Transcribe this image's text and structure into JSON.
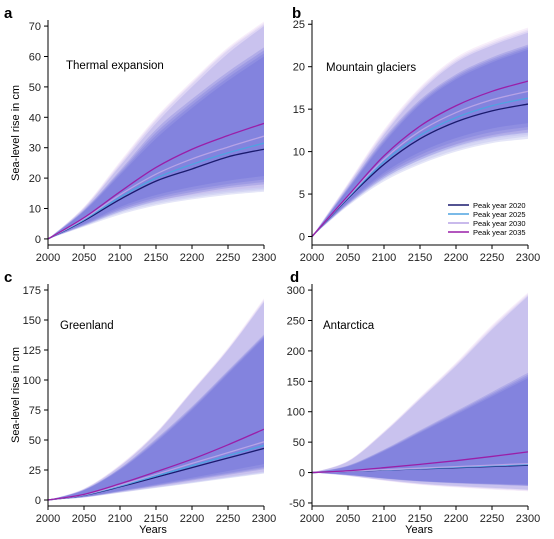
{
  "figure": {
    "ylabel": "Sea-level rise in cm",
    "xlabel": "Years",
    "legend": [
      {
        "label": "Peak year 2020",
        "color": "#1a1a6e"
      },
      {
        "label": "Peak year 2025",
        "color": "#4fa3e0"
      },
      {
        "label": "Peak year 2030",
        "color": "#b7a3e6"
      },
      {
        "label": "Peak year 2035",
        "color": "#9a1fa8"
      }
    ]
  },
  "chart_data": [
    {
      "type": "area",
      "letter": "a",
      "title": "Thermal expansion",
      "x": [
        2000,
        2050,
        2100,
        2150,
        2200,
        2250,
        2300
      ],
      "xlim": [
        2000,
        2300
      ],
      "ylim": [
        -2,
        72
      ],
      "yticks": [
        0,
        10,
        20,
        30,
        40,
        50,
        60,
        70
      ],
      "xticks": [
        2000,
        2050,
        2100,
        2150,
        2200,
        2250,
        2300
      ],
      "series": [
        {
          "name": "Peak year 2020",
          "color": "#1a1a6e",
          "values": [
            0,
            6,
            13,
            19,
            23,
            27,
            29.5
          ],
          "low": [
            0,
            4,
            8,
            11,
            13,
            14.5,
            15.5
          ],
          "high": [
            0,
            9,
            21,
            33,
            43,
            52,
            60
          ],
          "outer": [
            0,
            10,
            24,
            38,
            50,
            61,
            70
          ]
        },
        {
          "name": "Peak year 2025",
          "color": "#4fa3e0",
          "values": [
            0,
            6.3,
            13.7,
            20,
            24.5,
            28.3,
            31.5
          ],
          "low": [
            0,
            4.2,
            8.5,
            11.5,
            13.5,
            15,
            16
          ],
          "high": [
            0,
            9.2,
            21.5,
            34,
            44,
            53,
            61
          ],
          "outer": [
            0,
            10.2,
            24.5,
            39,
            51,
            62,
            70.5
          ]
        },
        {
          "name": "Peak year 2030",
          "color": "#b7a3e6",
          "values": [
            0,
            6.6,
            14.5,
            21.3,
            26.3,
            30.2,
            33.8
          ],
          "low": [
            0,
            4.4,
            9,
            12,
            14,
            15.5,
            16.5
          ],
          "high": [
            0,
            9.4,
            22,
            35,
            45,
            54,
            62
          ],
          "outer": [
            0,
            10.4,
            25,
            39.5,
            51.5,
            62.5,
            71
          ]
        },
        {
          "name": "Peak year 2035",
          "color": "#9a1fa8",
          "values": [
            0,
            7,
            15.5,
            23.5,
            29.5,
            34,
            38
          ],
          "low": [
            0,
            4.6,
            9.5,
            12.5,
            14.5,
            16,
            17
          ],
          "high": [
            0,
            9.6,
            22.5,
            36,
            46,
            55,
            63
          ],
          "outer": [
            0,
            10.6,
            25.5,
            40,
            52,
            63,
            71.5
          ]
        }
      ]
    },
    {
      "type": "area",
      "letter": "b",
      "title": "Mountain glaciers",
      "x": [
        2000,
        2050,
        2100,
        2150,
        2200,
        2250,
        2300
      ],
      "xlim": [
        2000,
        2300
      ],
      "ylim": [
        -1,
        25.5
      ],
      "yticks": [
        0,
        5,
        10,
        15,
        20,
        25
      ],
      "xticks": [
        2000,
        2050,
        2100,
        2150,
        2200,
        2250,
        2300
      ],
      "series": [
        {
          "name": "Peak year 2020",
          "color": "#1a1a6e",
          "values": [
            0,
            4.5,
            8.5,
            11.5,
            13.5,
            14.8,
            15.6
          ],
          "low": [
            0,
            3.6,
            6.5,
            8.5,
            10,
            11,
            11.5
          ],
          "high": [
            0,
            5.5,
            11,
            15.5,
            18.5,
            20.5,
            22
          ],
          "outer": [
            0,
            6,
            12,
            17,
            20.5,
            22.5,
            24
          ]
        },
        {
          "name": "Peak year 2025",
          "color": "#4fa3e0",
          "values": [
            0,
            4.6,
            8.8,
            11.9,
            14,
            15.4,
            16.3
          ],
          "low": [
            0,
            3.7,
            6.7,
            8.7,
            10.2,
            11.2,
            11.8
          ],
          "high": [
            0,
            5.6,
            11.2,
            15.7,
            18.7,
            20.7,
            22.2
          ],
          "outer": [
            0,
            6.1,
            12.2,
            17.2,
            20.7,
            22.7,
            24.2
          ]
        },
        {
          "name": "Peak year 2030",
          "color": "#b7a3e6",
          "values": [
            0,
            4.7,
            9.1,
            12.4,
            14.6,
            16.1,
            17.1
          ],
          "low": [
            0,
            3.8,
            6.9,
            9,
            10.5,
            11.5,
            12
          ],
          "high": [
            0,
            5.7,
            11.4,
            15.9,
            18.9,
            20.9,
            22.4
          ],
          "outer": [
            0,
            6.2,
            12.4,
            17.4,
            20.9,
            22.9,
            24.4
          ]
        },
        {
          "name": "Peak year 2035",
          "color": "#9a1fa8",
          "values": [
            0,
            4.8,
            9.5,
            13,
            15.4,
            17.1,
            18.3
          ],
          "low": [
            0,
            3.9,
            7.1,
            9.3,
            10.8,
            11.8,
            12.3
          ],
          "high": [
            0,
            5.8,
            11.6,
            16.1,
            19.1,
            21.1,
            22.6
          ],
          "outer": [
            0,
            6.3,
            12.6,
            17.6,
            21.1,
            23.1,
            24.6
          ]
        }
      ]
    },
    {
      "type": "area",
      "letter": "c",
      "title": "Greenland",
      "x": [
        2000,
        2050,
        2100,
        2150,
        2200,
        2250,
        2300
      ],
      "xlim": [
        2000,
        2300
      ],
      "ylim": [
        -5,
        180
      ],
      "yticks": [
        0,
        25,
        50,
        75,
        100,
        125,
        150,
        175
      ],
      "xticks": [
        2000,
        2050,
        2100,
        2150,
        2200,
        2250,
        2300
      ],
      "series": [
        {
          "name": "Peak year 2020",
          "color": "#1a1a6e",
          "values": [
            0,
            4,
            11,
            19,
            27,
            35,
            43
          ],
          "low": [
            0,
            2,
            6,
            10,
            14,
            18,
            22
          ],
          "high": [
            0,
            8,
            25,
            48,
            75,
            105,
            135
          ],
          "outer": [
            0,
            9,
            28,
            55,
            90,
            125,
            165
          ]
        },
        {
          "name": "Peak year 2025",
          "color": "#4fa3e0",
          "values": [
            0,
            4.2,
            11.6,
            20,
            28.5,
            37,
            45.5
          ],
          "low": [
            0,
            2.1,
            6.2,
            10.3,
            14.4,
            18.5,
            22.6
          ],
          "high": [
            0,
            8.2,
            25.5,
            49,
            76,
            106,
            136
          ],
          "outer": [
            0,
            9.2,
            28.5,
            55.5,
            90.5,
            125.5,
            166
          ]
        },
        {
          "name": "Peak year 2030",
          "color": "#b7a3e6",
          "values": [
            0,
            4.4,
            12.3,
            21.3,
            30.5,
            39.5,
            48.5
          ],
          "low": [
            0,
            2.2,
            6.4,
            10.6,
            14.8,
            19,
            23.2
          ],
          "high": [
            0,
            8.4,
            26,
            50,
            77,
            107,
            137
          ],
          "outer": [
            0,
            9.4,
            29,
            56,
            91,
            126,
            167
          ]
        },
        {
          "name": "Peak year 2035",
          "color": "#9a1fa8",
          "values": [
            0,
            4.7,
            13.5,
            23.5,
            34,
            46,
            59
          ],
          "low": [
            0,
            2.3,
            6.6,
            10.9,
            15.2,
            19.5,
            23.8
          ],
          "high": [
            0,
            8.6,
            26.5,
            51,
            78,
            108,
            138
          ],
          "outer": [
            0,
            9.6,
            29.5,
            56.5,
            91.5,
            127,
            168
          ]
        }
      ]
    },
    {
      "type": "area",
      "letter": "d",
      "title": "Antarctica",
      "x": [
        2000,
        2050,
        2100,
        2150,
        2200,
        2250,
        2300
      ],
      "xlim": [
        2000,
        2300
      ],
      "ylim": [
        -55,
        310
      ],
      "yticks": [
        -50,
        0,
        50,
        100,
        150,
        200,
        250,
        300
      ],
      "xticks": [
        2000,
        2050,
        2100,
        2150,
        2200,
        2250,
        2300
      ],
      "series": [
        {
          "name": "Peak year 2020",
          "color": "#1a1a6e",
          "values": [
            0,
            2,
            4,
            6,
            8,
            10,
            12
          ],
          "low": [
            0,
            -5,
            -12,
            -18,
            -22,
            -25,
            -28
          ],
          "high": [
            0,
            10,
            35,
            65,
            95,
            125,
            155
          ],
          "outer": [
            0,
            18,
            65,
            120,
            175,
            235,
            290
          ]
        },
        {
          "name": "Peak year 2025",
          "color": "#4fa3e0",
          "values": [
            0,
            2.1,
            4.3,
            6.5,
            8.7,
            11,
            13.3
          ],
          "low": [
            0,
            -5.2,
            -12.5,
            -18.7,
            -22.8,
            -26,
            -29
          ],
          "high": [
            0,
            10.5,
            36,
            66.5,
            97,
            127.5,
            158
          ],
          "outer": [
            0,
            18.5,
            66,
            121.5,
            177,
            237.5,
            292
          ]
        },
        {
          "name": "Peak year 2030",
          "color": "#b7a3e6",
          "values": [
            0,
            2.2,
            4.7,
            7.2,
            9.7,
            12.2,
            14.7
          ],
          "low": [
            0,
            -5.4,
            -13,
            -19.4,
            -23.6,
            -27,
            -30
          ],
          "high": [
            0,
            11,
            37,
            68,
            99,
            130,
            161
          ],
          "outer": [
            0,
            19,
            67,
            123,
            179,
            240,
            294
          ]
        },
        {
          "name": "Peak year 2035",
          "color": "#9a1fa8",
          "values": [
            0,
            3,
            8,
            13.5,
            19.5,
            26.5,
            34
          ],
          "low": [
            0,
            -5.6,
            -13.5,
            -20,
            -24.4,
            -28,
            -31
          ],
          "high": [
            0,
            11.5,
            38,
            69.5,
            101,
            132.5,
            164
          ],
          "outer": [
            0,
            19.5,
            68,
            124.5,
            181,
            242.5,
            296
          ]
        }
      ]
    }
  ]
}
